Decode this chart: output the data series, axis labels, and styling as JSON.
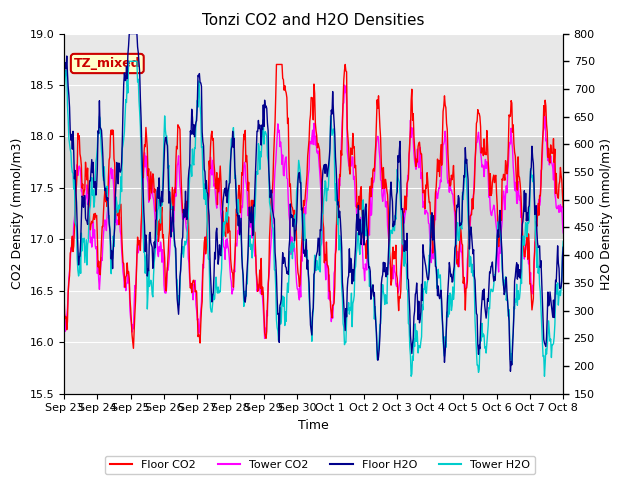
{
  "title": "Tonzi CO2 and H2O Densities",
  "xlabel": "Time",
  "ylabel_left": "CO2 Density (mmol/m3)",
  "ylabel_right": "H2O Density (mmol/m3)",
  "co2_ylim": [
    15.5,
    19.0
  ],
  "h2o_ylim": [
    150,
    800
  ],
  "co2_yticks": [
    15.5,
    16.0,
    16.5,
    17.0,
    17.5,
    18.0,
    18.5,
    19.0
  ],
  "h2o_yticks": [
    150,
    200,
    250,
    300,
    350,
    400,
    450,
    500,
    550,
    600,
    650,
    700,
    750,
    800
  ],
  "xtick_labels": [
    "Sep 23",
    "Sep 24",
    "Sep 25",
    "Sep 26",
    "Sep 27",
    "Sep 28",
    "Sep 29",
    "Sep 30",
    "Oct 1",
    "Oct 2",
    "Oct 3",
    "Oct 4",
    "Oct 5",
    "Oct 6",
    "Oct 7",
    "Oct 8"
  ],
  "n_days": 15,
  "shade_co2_range": [
    17.0,
    18.0
  ],
  "shade_color": "#c8c8c8",
  "line_colors": {
    "floor_co2": "#ff0000",
    "tower_co2": "#ff00ff",
    "floor_h2o": "#00008b",
    "tower_h2o": "#00cccc"
  },
  "line_widths": {
    "floor_co2": 1.0,
    "tower_co2": 1.0,
    "floor_h2o": 1.0,
    "tower_h2o": 1.0
  },
  "legend_labels": [
    "Floor CO2",
    "Tower CO2",
    "Floor H2O",
    "Tower H2O"
  ],
  "tz_label": "TZ_mixed",
  "tz_label_color": "#cc0000",
  "tz_box_facecolor": "#ffffcc",
  "tz_box_edgecolor": "#cc0000",
  "background_color": "#ffffff",
  "plot_bg_color": "#e8e8e8"
}
